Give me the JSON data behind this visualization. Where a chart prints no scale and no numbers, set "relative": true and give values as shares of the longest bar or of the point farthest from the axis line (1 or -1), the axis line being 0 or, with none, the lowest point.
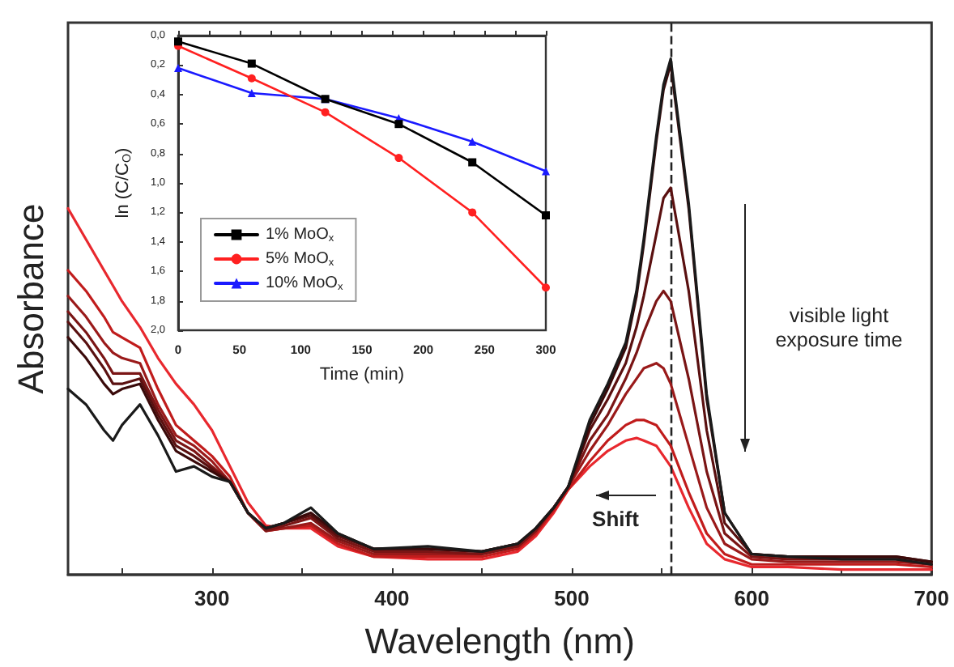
{
  "chart_data": [
    {
      "type": "line",
      "relative": true,
      "xlabel": "Wavelength (nm)",
      "ylabel": "Absorbance",
      "marker": "none",
      "legend": false,
      "grid": false,
      "x": [
        220,
        230,
        240,
        245,
        250,
        260,
        270,
        280,
        290,
        300,
        310,
        320,
        330,
        340,
        355,
        370,
        390,
        420,
        450,
        470,
        480,
        490,
        498,
        510,
        520,
        530,
        536,
        540,
        547,
        551,
        555,
        565,
        575,
        585,
        600,
        620,
        650,
        680,
        700
      ],
      "series": [
        {
          "color": "#1a1a1a",
          "values": [
            0.36,
            0.33,
            0.28,
            0.26,
            0.29,
            0.33,
            0.27,
            0.2,
            0.21,
            0.19,
            0.18,
            0.12,
            0.09,
            0.1,
            0.13,
            0.08,
            0.05,
            0.055,
            0.045,
            0.06,
            0.09,
            0.13,
            0.17,
            0.3,
            0.37,
            0.45,
            0.55,
            0.65,
            0.85,
            0.95,
            1.0,
            0.72,
            0.35,
            0.12,
            0.04,
            0.035,
            0.03,
            0.03,
            0.02
          ]
        },
        {
          "color": "#3a0a0a",
          "values": [
            0.46,
            0.42,
            0.37,
            0.35,
            0.36,
            0.37,
            0.3,
            0.24,
            0.22,
            0.2,
            0.18,
            0.12,
            0.09,
            0.1,
            0.12,
            0.08,
            0.05,
            0.05,
            0.045,
            0.06,
            0.09,
            0.13,
            0.17,
            0.29,
            0.36,
            0.44,
            0.54,
            0.64,
            0.84,
            0.94,
            0.99,
            0.71,
            0.34,
            0.12,
            0.04,
            0.035,
            0.035,
            0.035,
            0.025
          ]
        },
        {
          "color": "#5a1010",
          "values": [
            0.49,
            0.45,
            0.4,
            0.37,
            0.37,
            0.38,
            0.31,
            0.25,
            0.23,
            0.205,
            0.18,
            0.12,
            0.09,
            0.1,
            0.115,
            0.075,
            0.05,
            0.05,
            0.045,
            0.06,
            0.09,
            0.13,
            0.17,
            0.28,
            0.34,
            0.41,
            0.48,
            0.54,
            0.66,
            0.73,
            0.75,
            0.55,
            0.28,
            0.1,
            0.04,
            0.035,
            0.035,
            0.035,
            0.025
          ]
        },
        {
          "color": "#7a1515",
          "values": [
            0.51,
            0.47,
            0.42,
            0.39,
            0.39,
            0.39,
            0.32,
            0.26,
            0.24,
            0.21,
            0.18,
            0.12,
            0.085,
            0.095,
            0.11,
            0.07,
            0.045,
            0.045,
            0.04,
            0.055,
            0.085,
            0.13,
            0.17,
            0.26,
            0.31,
            0.38,
            0.43,
            0.47,
            0.53,
            0.55,
            0.53,
            0.38,
            0.2,
            0.08,
            0.035,
            0.03,
            0.03,
            0.03,
            0.02
          ]
        },
        {
          "color": "#9a1a1a",
          "values": [
            0.54,
            0.5,
            0.45,
            0.43,
            0.42,
            0.41,
            0.33,
            0.27,
            0.25,
            0.22,
            0.18,
            0.12,
            0.085,
            0.09,
            0.1,
            0.065,
            0.04,
            0.04,
            0.04,
            0.055,
            0.085,
            0.13,
            0.17,
            0.24,
            0.29,
            0.35,
            0.38,
            0.4,
            0.41,
            0.4,
            0.37,
            0.25,
            0.13,
            0.06,
            0.03,
            0.025,
            0.025,
            0.025,
            0.02
          ]
        },
        {
          "color": "#c01c1c",
          "values": [
            0.59,
            0.55,
            0.5,
            0.47,
            0.46,
            0.44,
            0.36,
            0.29,
            0.26,
            0.23,
            0.19,
            0.12,
            0.085,
            0.09,
            0.095,
            0.06,
            0.035,
            0.035,
            0.035,
            0.05,
            0.08,
            0.125,
            0.165,
            0.22,
            0.26,
            0.29,
            0.3,
            0.3,
            0.29,
            0.27,
            0.25,
            0.16,
            0.08,
            0.04,
            0.02,
            0.02,
            0.02,
            0.02,
            0.015
          ]
        },
        {
          "color": "#e8282e",
          "values": [
            0.71,
            0.65,
            0.59,
            0.56,
            0.53,
            0.48,
            0.42,
            0.37,
            0.33,
            0.28,
            0.21,
            0.14,
            0.095,
            0.09,
            0.09,
            0.055,
            0.035,
            0.03,
            0.03,
            0.045,
            0.075,
            0.12,
            0.165,
            0.21,
            0.24,
            0.26,
            0.265,
            0.26,
            0.25,
            0.23,
            0.21,
            0.13,
            0.06,
            0.03,
            0.015,
            0.015,
            0.01,
            0.01,
            0.01
          ]
        }
      ],
      "xlim": [
        220,
        700
      ],
      "xticks": [
        {
          "value": 250,
          "label": null
        },
        300,
        {
          "value": 350,
          "label": null
        },
        400,
        {
          "value": 450,
          "label": null
        },
        500,
        {
          "value": 550,
          "label": null
        },
        600,
        {
          "value": 650,
          "label": null
        },
        700
      ],
      "ref_lines": [
        {
          "axis": "x",
          "value": 555,
          "label": null,
          "color": "#222222",
          "line_style": "dashed"
        }
      ],
      "annotations": [
        "visible light exposure time",
        "Shift"
      ]
    },
    {
      "type": "line",
      "xlabel": "Time (min)",
      "ylabel": "ln (C/C$_{O}$)",
      "legend": "bottom left",
      "grid": false,
      "x": [
        0,
        60,
        120,
        180,
        240,
        300
      ],
      "series": [
        {
          "name": "1% MoO$_{x}$",
          "color": "#000000",
          "marker": "square",
          "values": [
            0.04,
            0.19,
            0.43,
            0.6,
            0.86,
            1.22
          ]
        },
        {
          "name": "5% MoO$_{x}$",
          "color": "#ff2020",
          "marker": "circle",
          "values": [
            0.07,
            0.29,
            0.52,
            0.83,
            1.2,
            1.71
          ]
        },
        {
          "name": "10% MoO$_{x}$",
          "color": "#1a1aff",
          "marker": "triangle",
          "values": [
            0.22,
            0.39,
            0.43,
            0.56,
            0.72,
            0.92
          ]
        }
      ],
      "xlim": [
        0,
        300
      ],
      "xticks": [
        0,
        {
          "value": 25,
          "label": null
        },
        50,
        {
          "value": 75,
          "label": null
        },
        100,
        {
          "value": 125,
          "label": null
        },
        150,
        {
          "value": 175,
          "label": null
        },
        200,
        {
          "value": 225,
          "label": null
        },
        250,
        {
          "value": 275,
          "label": null
        },
        300
      ],
      "ylim": [
        2.0,
        0.0
      ],
      "yticks": [
        {
          "value": 0,
          "label": "0,0"
        },
        {
          "value": 0.2,
          "label": "0,2"
        },
        {
          "value": 0.4,
          "label": "0,4"
        },
        {
          "value": 0.6,
          "label": "0,6"
        },
        {
          "value": 0.8,
          "label": "0,8"
        },
        {
          "value": 1.0,
          "label": "1,0"
        },
        {
          "value": 1.2,
          "label": "1,2"
        },
        {
          "value": 1.4,
          "label": "1,4"
        },
        {
          "value": 1.6,
          "label": "1,6"
        },
        {
          "value": 1.8,
          "label": "1,8"
        },
        {
          "value": 2.0,
          "label": "2,0"
        }
      ]
    }
  ]
}
